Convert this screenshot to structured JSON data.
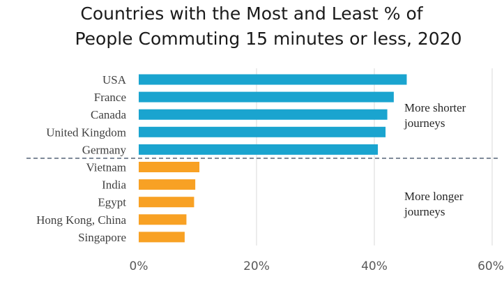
{
  "chart_data": {
    "type": "bar",
    "orientation": "horizontal",
    "title": [
      "Countries with the Most and Least % of",
      "People Commuting 15 minutes or less, 2020"
    ],
    "categories": [
      "USA",
      "France",
      "Canada",
      "United Kingdom",
      "Germany",
      "Vietnam",
      "India",
      "Egypt",
      "Hong Kong, China",
      "Singapore"
    ],
    "values": [
      45.5,
      43.3,
      42.2,
      41.9,
      40.6,
      10.3,
      9.6,
      9.4,
      8.1,
      7.8
    ],
    "bar_colors": [
      "#1aa4cf",
      "#1aa4cf",
      "#1aa4cf",
      "#1aa4cf",
      "#1aa4cf",
      "#f8a124",
      "#f8a124",
      "#f8a124",
      "#f8a124",
      "#f8a124"
    ],
    "xlim": [
      0,
      60
    ],
    "x_ticks": [
      0,
      20,
      40,
      60
    ],
    "x_tick_labels": [
      "0%",
      "20%",
      "40%",
      "60%"
    ],
    "grid": true,
    "divider": {
      "between": [
        "Germany",
        "Vietnam"
      ],
      "style": "dashed",
      "color": "#44546a"
    },
    "annotations": [
      {
        "group": "top",
        "lines": [
          "More shorter",
          "journeys"
        ]
      },
      {
        "group": "bottom",
        "lines": [
          "More longer",
          "journeys"
        ]
      }
    ],
    "xlabel": "",
    "ylabel": ""
  }
}
